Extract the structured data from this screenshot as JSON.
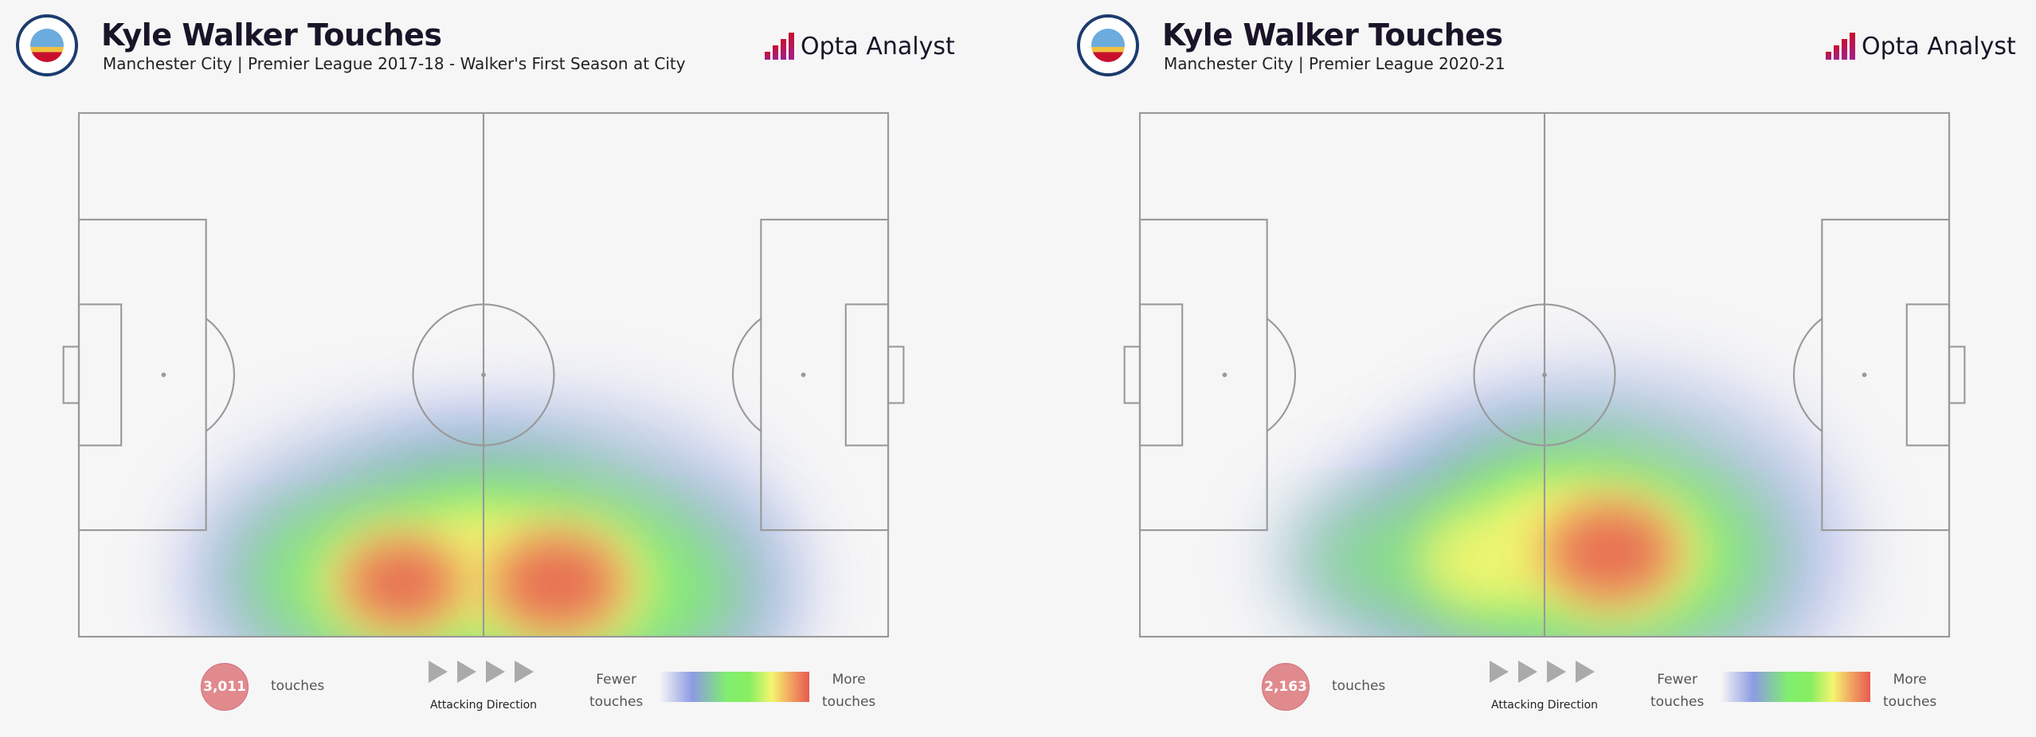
{
  "brand": "Opta Analyst",
  "crest_text": "MANCHESTER CITY",
  "legend": {
    "attacking_direction": "Attacking Direction",
    "fewer": "Fewer",
    "more": "More",
    "touches_word": "touches",
    "colors": [
      "#8c9be3",
      "#80ee70",
      "#f5f570",
      "#e85a50"
    ]
  },
  "panels": [
    {
      "title": "Kyle Walker Touches",
      "subtitle": "Manchester City | Premier League 2017-18 - Walker's First Season at City",
      "touches": "3,011"
    },
    {
      "title": "Kyle Walker Touches",
      "subtitle": "Manchester City | Premier League 2020-21",
      "touches": "2,163"
    }
  ],
  "chart_data": [
    {
      "type": "heatmap",
      "title": "Kyle Walker Touches",
      "season": "2017-18",
      "total_touches": 3011,
      "pitch_m": [
        105,
        68
      ],
      "hotspots": [
        {
          "x": 42,
          "y": 61,
          "intensity": 0.9
        },
        {
          "x": 62,
          "y": 61,
          "intensity": 1.0
        },
        {
          "x": 52,
          "y": 57,
          "intensity": 0.6
        },
        {
          "x": 30,
          "y": 60,
          "intensity": 0.4
        },
        {
          "x": 76,
          "y": 62,
          "intensity": 0.5
        }
      ]
    },
    {
      "type": "heatmap",
      "title": "Kyle Walker Touches",
      "season": "2020-21",
      "total_touches": 2163,
      "pitch_m": [
        105,
        68
      ],
      "hotspots": [
        {
          "x": 61,
          "y": 57,
          "intensity": 1.0
        },
        {
          "x": 45,
          "y": 58,
          "intensity": 0.7
        },
        {
          "x": 53,
          "y": 54,
          "intensity": 0.6
        },
        {
          "x": 30,
          "y": 58,
          "intensity": 0.4
        },
        {
          "x": 72,
          "y": 58,
          "intensity": 0.4
        }
      ]
    }
  ]
}
